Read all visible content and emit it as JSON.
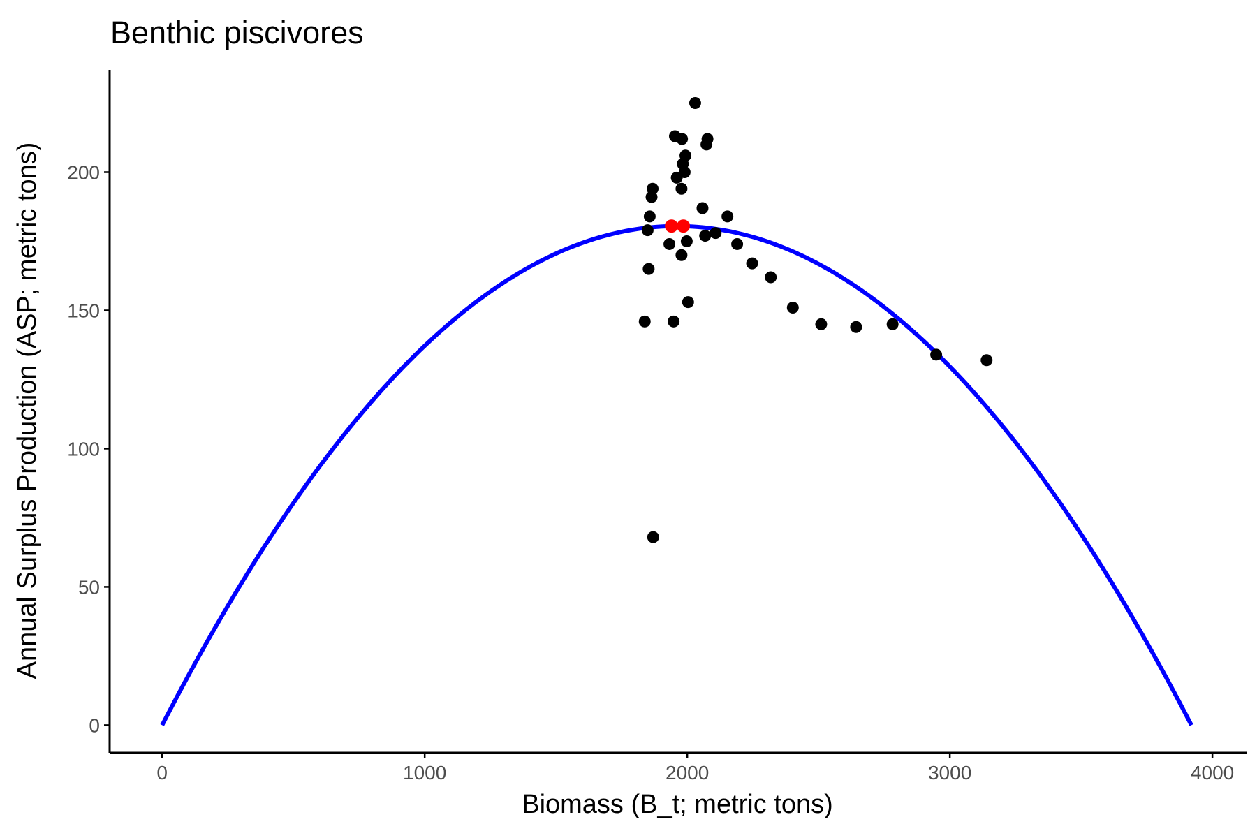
{
  "chart_data": {
    "type": "scatter",
    "title": "Benthic piscivores",
    "xlabel": "Biomass (B_t; metric tons)",
    "ylabel": "Annual Surplus Production (ASP; metric tons)",
    "xlim": [
      -200,
      4130
    ],
    "ylim": [
      -10,
      237
    ],
    "x_ticks": [
      0,
      1000,
      2000,
      3000,
      4000
    ],
    "y_ticks": [
      0,
      50,
      100,
      150,
      200
    ],
    "grid": false,
    "legend": "none",
    "curve": {
      "color": "#0000ff",
      "description": "parabolic surplus production fit",
      "k": 3920,
      "msy": 180.5
    },
    "series": [
      {
        "color": "#000000",
        "points": [
          [
            1838,
            146
          ],
          [
            1849,
            179
          ],
          [
            1853,
            165
          ],
          [
            1857,
            184
          ],
          [
            1864,
            191
          ],
          [
            1868,
            194
          ],
          [
            1870,
            68
          ],
          [
            1932,
            174
          ],
          [
            1948,
            146
          ],
          [
            1953,
            213
          ],
          [
            1960,
            198
          ],
          [
            1978,
            170
          ],
          [
            1978,
            194
          ],
          [
            1980,
            212
          ],
          [
            1983,
            203
          ],
          [
            1990,
            200
          ],
          [
            1993,
            206
          ],
          [
            1998,
            175
          ],
          [
            2003,
            153
          ],
          [
            2030,
            225
          ],
          [
            2058,
            187
          ],
          [
            2068,
            177
          ],
          [
            2073,
            210
          ],
          [
            2077,
            212
          ],
          [
            2108,
            178
          ],
          [
            2153,
            184
          ],
          [
            2190,
            174
          ],
          [
            2247,
            167
          ],
          [
            2318,
            162
          ],
          [
            2402,
            151
          ],
          [
            2510,
            145
          ],
          [
            2643,
            144
          ],
          [
            2782,
            145
          ],
          [
            2948,
            134
          ],
          [
            3140,
            132
          ]
        ]
      },
      {
        "color": "#ff0000",
        "points": [
          [
            1940,
            180.5
          ],
          [
            1985,
            180.5
          ]
        ]
      }
    ]
  }
}
